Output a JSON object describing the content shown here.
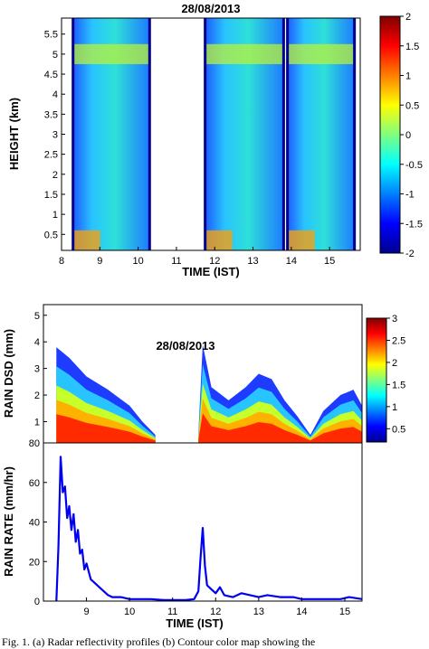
{
  "chart_data": [
    {
      "type": "heatmap",
      "title": "28/08/2013",
      "xlabel": "TIME (IST)",
      "ylabel": "HEIGHT (km)",
      "xlim": [
        8.0,
        15.8
      ],
      "ylim": [
        0.1,
        5.9
      ],
      "xticks": [
        8,
        9,
        10,
        11,
        12,
        13,
        14,
        15
      ],
      "yticks": [
        0.5,
        1,
        1.5,
        2,
        2.5,
        3,
        3.5,
        4,
        4.5,
        5,
        5.5
      ],
      "colorbar": {
        "min": -2,
        "max": 2,
        "ticks": [
          -2,
          -1.5,
          -1,
          -0.5,
          0,
          0.5,
          1,
          1.5,
          2
        ],
        "colormap": "jet"
      },
      "echo_intervals": [
        {
          "start": 8.3,
          "end": 10.3,
          "top": 5.9
        },
        {
          "start": 11.75,
          "end": 13.8,
          "top": 5.9
        },
        {
          "start": 13.9,
          "end": 15.65,
          "top": 5.9
        }
      ],
      "bright_band_height": 5.0
    },
    {
      "type": "heatmap",
      "title": "28/08/2013",
      "xlabel": "",
      "ylabel": "RAIN DSD (mm)",
      "xlim": [
        8.0,
        15.4
      ],
      "ylim": [
        0.2,
        5.4
      ],
      "yticks": [
        1,
        2,
        3,
        4,
        5
      ],
      "colorbar": {
        "min": 0.2,
        "max": 3,
        "ticks": [
          0.5,
          1,
          1.5,
          2,
          2.5,
          3
        ],
        "colormap": "jet"
      },
      "max_diameter": [
        {
          "x": 8.3,
          "y": 3.8
        },
        {
          "x": 8.6,
          "y": 3.4
        },
        {
          "x": 9.0,
          "y": 2.7
        },
        {
          "x": 9.5,
          "y": 2.2
        },
        {
          "x": 10.0,
          "y": 1.6
        },
        {
          "x": 10.3,
          "y": 1.0
        },
        {
          "x": 10.6,
          "y": 0.5
        },
        {
          "x": 11.6,
          "y": 0.6
        },
        {
          "x": 11.7,
          "y": 3.9
        },
        {
          "x": 11.9,
          "y": 2.3
        },
        {
          "x": 12.3,
          "y": 1.8
        },
        {
          "x": 12.7,
          "y": 2.3
        },
        {
          "x": 13.0,
          "y": 2.8
        },
        {
          "x": 13.3,
          "y": 2.6
        },
        {
          "x": 13.6,
          "y": 1.8
        },
        {
          "x": 13.9,
          "y": 1.2
        },
        {
          "x": 14.2,
          "y": 0.5
        },
        {
          "x": 14.5,
          "y": 1.4
        },
        {
          "x": 14.9,
          "y": 2.0
        },
        {
          "x": 15.2,
          "y": 2.2
        },
        {
          "x": 15.4,
          "y": 1.6
        }
      ]
    },
    {
      "type": "line",
      "title": "",
      "xlabel": "TIME (IST)",
      "ylabel": "RAIN RATE (mm/hr)",
      "xlim": [
        8.0,
        15.4
      ],
      "ylim": [
        0,
        80
      ],
      "xticks": [
        9,
        10,
        11,
        12,
        13,
        14,
        15
      ],
      "yticks": [
        0,
        20,
        40,
        60,
        80
      ],
      "series": [
        {
          "color": "#0000ee",
          "x": [
            8.3,
            8.35,
            8.4,
            8.45,
            8.5,
            8.55,
            8.6,
            8.65,
            8.7,
            8.75,
            8.8,
            8.85,
            8.9,
            8.95,
            9.0,
            9.1,
            9.2,
            9.3,
            9.4,
            9.5,
            9.6,
            9.8,
            10.0,
            10.2,
            10.5,
            10.8,
            11.0,
            11.3,
            11.5,
            11.6,
            11.65,
            11.7,
            11.75,
            11.8,
            11.9,
            12.0,
            12.1,
            12.2,
            12.4,
            12.6,
            12.8,
            13.0,
            13.2,
            13.5,
            13.8,
            14.0,
            14.3,
            14.6,
            14.9,
            15.1,
            15.4
          ],
          "y": [
            0,
            28,
            73,
            55,
            58,
            42,
            48,
            36,
            44,
            30,
            36,
            24,
            26,
            16,
            19,
            11,
            9,
            7,
            5,
            3,
            2,
            2,
            1,
            1,
            1,
            0.5,
            0.5,
            0.5,
            1,
            5,
            22,
            37,
            18,
            8,
            6,
            4,
            7,
            3,
            2,
            4,
            3,
            2,
            3,
            2,
            2,
            1,
            1,
            1,
            1,
            2,
            1
          ]
        }
      ]
    }
  ],
  "caption": "Fig. 1. (a) Radar reflectivity profiles (b) Contour color map showing the"
}
